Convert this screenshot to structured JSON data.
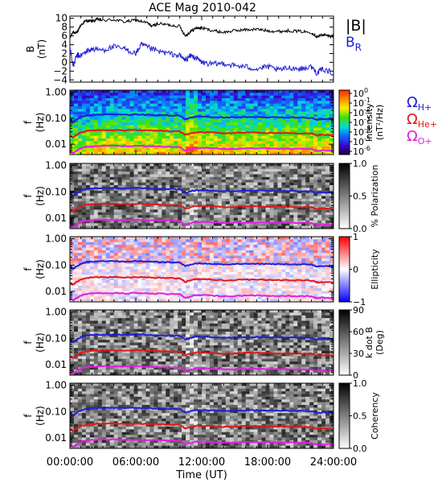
{
  "title": "ACE Mag 2010-042",
  "chart_data": [
    {
      "type": "line",
      "ylabel": "B",
      "yunit": "(nT)",
      "ylim": [
        -4.5,
        10.5
      ],
      "ytick_labels": [
        "10",
        "8",
        "6",
        "4",
        "2",
        "0",
        "−2",
        "−4"
      ],
      "ytick_values": [
        10,
        8,
        6,
        4,
        2,
        0,
        -2,
        -4
      ],
      "xlim_hours": [
        0,
        24
      ],
      "legend": [
        {
          "text": "|B|",
          "color": "#000000"
        },
        {
          "text": "B",
          "sub": "R",
          "color": "#1f1fd6"
        }
      ],
      "series": [
        {
          "name": "|B|",
          "color": "#000000",
          "x_hours": [
            0.0,
            0.3,
            0.6,
            1.0,
            1.5,
            2.0,
            2.5,
            3.0,
            4.0,
            5.0,
            6.0,
            7.0,
            7.5,
            8.0,
            9.0,
            10.0,
            10.5,
            11.0,
            11.5,
            12.0,
            13.0,
            14.0,
            15.0,
            16.0,
            17.0,
            18.0,
            19.0,
            20.0,
            21.0,
            22.0,
            22.5,
            23.0,
            23.5,
            24.0
          ],
          "values": [
            5.5,
            7.0,
            6.5,
            8.5,
            9.5,
            9.3,
            9.8,
            9.5,
            9.7,
            9.2,
            9.6,
            9.0,
            8.2,
            8.8,
            8.5,
            8.2,
            6.0,
            7.0,
            7.8,
            7.8,
            7.2,
            6.8,
            7.2,
            7.4,
            7.5,
            7.2,
            7.0,
            7.2,
            7.0,
            6.8,
            5.8,
            6.3,
            6.0,
            5.9
          ]
        },
        {
          "name": "B_R",
          "color": "#1f1fd6",
          "x_hours": [
            0.0,
            0.3,
            0.6,
            1.0,
            1.5,
            2.0,
            3.0,
            4.0,
            5.0,
            6.0,
            6.5,
            7.0,
            8.0,
            9.0,
            10.0,
            10.5,
            11.0,
            11.5,
            12.0,
            13.0,
            14.0,
            15.0,
            16.0,
            17.0,
            18.0,
            19.0,
            20.0,
            21.0,
            22.0,
            22.5,
            23.0,
            24.0
          ],
          "values": [
            3.5,
            -1.0,
            1.5,
            1.5,
            2.5,
            3.0,
            2.8,
            3.5,
            3.0,
            2.0,
            4.0,
            3.5,
            2.5,
            2.0,
            1.5,
            0.5,
            1.5,
            1.0,
            0.0,
            -0.5,
            -0.2,
            -0.8,
            -1.0,
            -1.5,
            -1.0,
            -1.8,
            -1.2,
            -1.5,
            -1.0,
            -2.5,
            -1.5,
            -2.5
          ]
        }
      ]
    },
    {
      "type": "heatmap",
      "ylabel": "f",
      "yunit": "(Hz)",
      "yscale": "log",
      "ylim": [
        0.004,
        1.2
      ],
      "ytick_labels": [
        "1.00",
        "0.10",
        "0.01"
      ],
      "ytick_values": [
        1.0,
        0.1,
        0.01
      ],
      "xlim_hours": [
        0,
        24
      ],
      "colorbar": {
        "label": "Intensity",
        "unit": "(nT²/Hz)",
        "scale": "log",
        "tick_labels": [
          {
            "base": "10",
            "exp": "0"
          },
          {
            "base": "10",
            "exp": "-1"
          },
          {
            "base": "10",
            "exp": "-2"
          },
          {
            "base": "10",
            "exp": "-3"
          },
          {
            "base": "10",
            "exp": "-4"
          },
          {
            "base": "10",
            "exp": "-5"
          },
          {
            "base": "10",
            "exp": "-6"
          }
        ],
        "colormap": "rainbow"
      }
    },
    {
      "type": "heatmap",
      "ylabel": "f",
      "yunit": "(Hz)",
      "yscale": "log",
      "ylim": [
        0.004,
        1.2
      ],
      "ytick_labels": [
        "1.00",
        "0.10",
        "0.01"
      ],
      "ytick_values": [
        1.0,
        0.1,
        0.01
      ],
      "xlim_hours": [
        0,
        24
      ],
      "colorbar": {
        "label": "% Polarization",
        "unit": "",
        "tick_labels": [
          "1.0",
          "0.5",
          "0.0"
        ],
        "tick_values": [
          1.0,
          0.5,
          0.0
        ],
        "colormap": "grayscale"
      }
    },
    {
      "type": "heatmap",
      "ylabel": "f",
      "yunit": "(Hz)",
      "yscale": "log",
      "ylim": [
        0.004,
        1.2
      ],
      "ytick_labels": [
        "1.00",
        "0.10",
        "0.01"
      ],
      "ytick_values": [
        1.0,
        0.1,
        0.01
      ],
      "xlim_hours": [
        0,
        24
      ],
      "colorbar": {
        "label": "Ellipticity",
        "unit": "",
        "tick_labels": [
          "1",
          "0",
          "−1"
        ],
        "tick_values": [
          1,
          0,
          -1
        ],
        "colormap": "blue-white-red"
      }
    },
    {
      "type": "heatmap",
      "ylabel": "f",
      "yunit": "(Hz)",
      "yscale": "log",
      "ylim": [
        0.004,
        1.2
      ],
      "ytick_labels": [
        "1.00",
        "0.10",
        "0.01"
      ],
      "ytick_values": [
        1.0,
        0.1,
        0.01
      ],
      "xlim_hours": [
        0,
        24
      ],
      "colorbar": {
        "label": "k dot B",
        "unit": "(Deg)",
        "tick_labels": [
          "90",
          "60",
          "30",
          "0"
        ],
        "tick_values": [
          90,
          60,
          30,
          0
        ],
        "colormap": "grayscale"
      }
    },
    {
      "type": "heatmap",
      "ylabel": "f",
      "yunit": "(Hz)",
      "yscale": "log",
      "ylim": [
        0.004,
        1.2
      ],
      "ytick_labels": [
        "1.00",
        "0.10",
        "0.01"
      ],
      "ytick_values": [
        1.0,
        0.1,
        0.01
      ],
      "xlim_hours": [
        0,
        24
      ],
      "xlabel": "Time (UT)",
      "xtick_labels": [
        "00:00:00",
        "06:00:00",
        "12:00:00",
        "18:00:00",
        "24:00:00"
      ],
      "xtick_values_hours": [
        0,
        6,
        12,
        18,
        24
      ],
      "colorbar": {
        "label": "Coherency",
        "unit": "",
        "tick_labels": [
          "1.0",
          "0.5",
          "0.0"
        ],
        "tick_values": [
          1.0,
          0.5,
          0.0
        ],
        "colormap": "grayscale"
      }
    }
  ],
  "gyrofrequency_lines": {
    "legend": [
      {
        "symbol": "Ω",
        "sub": "H+",
        "color": "#1f1fd6"
      },
      {
        "symbol": "Ω",
        "sub": "He+",
        "color": "#e01818"
      },
      {
        "symbol": "Ω",
        "sub": "O+",
        "color": "#e020e0"
      }
    ],
    "x_hours": [
      0.0,
      0.3,
      0.6,
      1.0,
      1.5,
      2.0,
      3.0,
      4.0,
      5.0,
      6.0,
      7.0,
      8.0,
      9.0,
      10.0,
      10.5,
      11.0,
      11.5,
      12.0,
      13.0,
      14.0,
      15.0,
      16.0,
      17.0,
      18.0,
      19.0,
      20.0,
      21.0,
      22.0,
      22.5,
      23.0,
      24.0
    ],
    "series": [
      {
        "name": "ΩH+",
        "color": "#1f1fd6",
        "values_hz": [
          0.085,
          0.07,
          0.09,
          0.11,
          0.13,
          0.135,
          0.14,
          0.14,
          0.135,
          0.14,
          0.135,
          0.13,
          0.128,
          0.125,
          0.09,
          0.105,
          0.115,
          0.115,
          0.11,
          0.105,
          0.108,
          0.11,
          0.112,
          0.11,
          0.108,
          0.108,
          0.106,
          0.104,
          0.088,
          0.094,
          0.09
        ]
      },
      {
        "name": "ΩHe+",
        "color": "#e01818",
        "values_hz": [
          0.021,
          0.018,
          0.023,
          0.028,
          0.032,
          0.034,
          0.035,
          0.035,
          0.034,
          0.035,
          0.034,
          0.033,
          0.032,
          0.031,
          0.023,
          0.026,
          0.029,
          0.029,
          0.028,
          0.026,
          0.027,
          0.028,
          0.028,
          0.027,
          0.027,
          0.027,
          0.026,
          0.026,
          0.022,
          0.023,
          0.022
        ]
      },
      {
        "name": "ΩO+",
        "color": "#e020e0",
        "values_hz": [
          0.0053,
          0.0045,
          0.0056,
          0.0069,
          0.008,
          0.0084,
          0.0087,
          0.0087,
          0.0084,
          0.0087,
          0.0084,
          0.0082,
          0.008,
          0.0078,
          0.0056,
          0.0065,
          0.0072,
          0.0072,
          0.0069,
          0.0066,
          0.0067,
          0.0069,
          0.007,
          0.0069,
          0.0067,
          0.0067,
          0.0066,
          0.0065,
          0.0055,
          0.0058,
          0.0056
        ]
      }
    ]
  }
}
